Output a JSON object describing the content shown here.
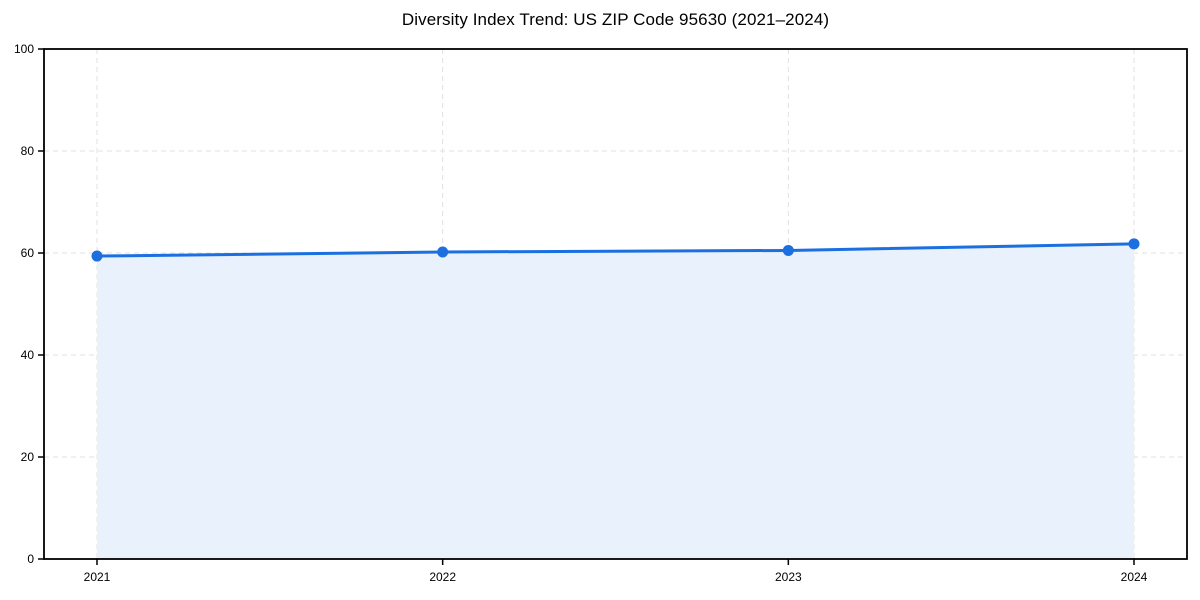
{
  "chart_data": {
    "type": "area",
    "title": "Diversity Index Trend: US ZIP Code 95630 (2021–2024)",
    "x": [
      "2021",
      "2022",
      "2023",
      "2024"
    ],
    "series": [
      {
        "name": "Diversity Index",
        "values": [
          59.4,
          60.2,
          60.5,
          61.8
        ]
      }
    ],
    "xlabel": "",
    "ylabel": "",
    "ylim": [
      0,
      100
    ],
    "yticks": [
      0,
      20,
      40,
      60,
      80,
      100
    ],
    "grid": true,
    "legend_position": "none",
    "colors": {
      "line": "#1b6fe0",
      "marker": "#1b6fe0",
      "fill": "#e9f1fc",
      "grid": "#e0e0e0",
      "spine": "#000000",
      "background": "#ffffff"
    }
  }
}
